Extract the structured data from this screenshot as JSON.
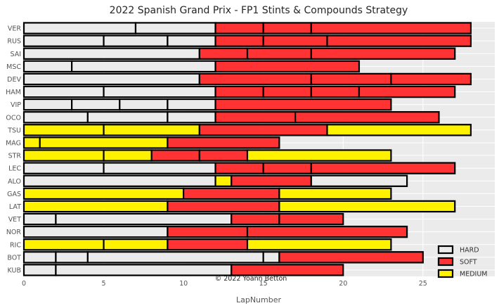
{
  "chart_data": {
    "type": "bar",
    "orientation": "horizontal-stacked",
    "title": "2022 Spanish Grand Prix - FP1 Stints & Compounds Strategy",
    "xlabel": "LapNumber",
    "ylabel": "",
    "xlim": [
      0,
      29.5
    ],
    "xticks": [
      0,
      5,
      10,
      15,
      20,
      25
    ],
    "grid": true,
    "legend_position": "bottom-right",
    "annotation": "© 2022 Yoann Betton",
    "compounds": [
      {
        "name": "HARD",
        "color": "#EBEBEB"
      },
      {
        "name": "SOFT",
        "color": "#FF3333"
      },
      {
        "name": "MEDIUM",
        "color": "#FFF200"
      }
    ],
    "drivers": [
      {
        "name": "VER",
        "stints": [
          {
            "start": 0,
            "end": 7,
            "compound": "HARD"
          },
          {
            "start": 7,
            "end": 12,
            "compound": "HARD"
          },
          {
            "start": 12,
            "end": 15,
            "compound": "SOFT"
          },
          {
            "start": 15,
            "end": 18,
            "compound": "SOFT"
          },
          {
            "start": 18,
            "end": 28,
            "compound": "SOFT"
          }
        ]
      },
      {
        "name": "RUS",
        "stints": [
          {
            "start": 0,
            "end": 5,
            "compound": "HARD"
          },
          {
            "start": 5,
            "end": 9,
            "compound": "HARD"
          },
          {
            "start": 9,
            "end": 12,
            "compound": "HARD"
          },
          {
            "start": 12,
            "end": 15,
            "compound": "SOFT"
          },
          {
            "start": 15,
            "end": 19,
            "compound": "SOFT"
          },
          {
            "start": 19,
            "end": 28,
            "compound": "SOFT"
          }
        ]
      },
      {
        "name": "SAI",
        "stints": [
          {
            "start": 0,
            "end": 11,
            "compound": "HARD"
          },
          {
            "start": 11,
            "end": 14,
            "compound": "SOFT"
          },
          {
            "start": 14,
            "end": 18,
            "compound": "SOFT"
          },
          {
            "start": 18,
            "end": 27,
            "compound": "SOFT"
          }
        ]
      },
      {
        "name": "MSC",
        "stints": [
          {
            "start": 0,
            "end": 3,
            "compound": "HARD"
          },
          {
            "start": 3,
            "end": 12,
            "compound": "HARD"
          },
          {
            "start": 12,
            "end": 21,
            "compound": "SOFT"
          }
        ]
      },
      {
        "name": "DEV",
        "stints": [
          {
            "start": 0,
            "end": 11,
            "compound": "HARD"
          },
          {
            "start": 11,
            "end": 18,
            "compound": "SOFT"
          },
          {
            "start": 18,
            "end": 23,
            "compound": "SOFT"
          },
          {
            "start": 23,
            "end": 28,
            "compound": "SOFT"
          }
        ]
      },
      {
        "name": "HAM",
        "stints": [
          {
            "start": 0,
            "end": 5,
            "compound": "HARD"
          },
          {
            "start": 5,
            "end": 12,
            "compound": "HARD"
          },
          {
            "start": 12,
            "end": 15,
            "compound": "SOFT"
          },
          {
            "start": 15,
            "end": 18,
            "compound": "SOFT"
          },
          {
            "start": 18,
            "end": 21,
            "compound": "SOFT"
          },
          {
            "start": 21,
            "end": 27,
            "compound": "SOFT"
          }
        ]
      },
      {
        "name": "VIP",
        "stints": [
          {
            "start": 0,
            "end": 3,
            "compound": "HARD"
          },
          {
            "start": 3,
            "end": 6,
            "compound": "HARD"
          },
          {
            "start": 6,
            "end": 9,
            "compound": "HARD"
          },
          {
            "start": 9,
            "end": 12,
            "compound": "HARD"
          },
          {
            "start": 12,
            "end": 23,
            "compound": "SOFT"
          }
        ]
      },
      {
        "name": "OCO",
        "stints": [
          {
            "start": 0,
            "end": 4,
            "compound": "HARD"
          },
          {
            "start": 4,
            "end": 9,
            "compound": "HARD"
          },
          {
            "start": 9,
            "end": 12,
            "compound": "HARD"
          },
          {
            "start": 12,
            "end": 17,
            "compound": "SOFT"
          },
          {
            "start": 17,
            "end": 26,
            "compound": "SOFT"
          }
        ]
      },
      {
        "name": "TSU",
        "stints": [
          {
            "start": 0,
            "end": 5,
            "compound": "MEDIUM"
          },
          {
            "start": 5,
            "end": 11,
            "compound": "MEDIUM"
          },
          {
            "start": 11,
            "end": 19,
            "compound": "SOFT"
          },
          {
            "start": 19,
            "end": 28,
            "compound": "MEDIUM"
          }
        ]
      },
      {
        "name": "MAG",
        "stints": [
          {
            "start": 0,
            "end": 1,
            "compound": "MEDIUM"
          },
          {
            "start": 1,
            "end": 9,
            "compound": "MEDIUM"
          },
          {
            "start": 9,
            "end": 16,
            "compound": "SOFT"
          }
        ]
      },
      {
        "name": "STR",
        "stints": [
          {
            "start": 0,
            "end": 5,
            "compound": "MEDIUM"
          },
          {
            "start": 5,
            "end": 8,
            "compound": "MEDIUM"
          },
          {
            "start": 8,
            "end": 11,
            "compound": "SOFT"
          },
          {
            "start": 11,
            "end": 14,
            "compound": "SOFT"
          },
          {
            "start": 14,
            "end": 23,
            "compound": "MEDIUM"
          }
        ]
      },
      {
        "name": "LEC",
        "stints": [
          {
            "start": 0,
            "end": 5,
            "compound": "HARD"
          },
          {
            "start": 5,
            "end": 12,
            "compound": "HARD"
          },
          {
            "start": 12,
            "end": 15,
            "compound": "SOFT"
          },
          {
            "start": 15,
            "end": 18,
            "compound": "SOFT"
          },
          {
            "start": 18,
            "end": 27,
            "compound": "SOFT"
          }
        ]
      },
      {
        "name": "ALO",
        "stints": [
          {
            "start": 0,
            "end": 12,
            "compound": "HARD"
          },
          {
            "start": 12,
            "end": 13,
            "compound": "MEDIUM"
          },
          {
            "start": 13,
            "end": 18,
            "compound": "SOFT"
          },
          {
            "start": 18,
            "end": 24,
            "compound": "HARD"
          }
        ]
      },
      {
        "name": "GAS",
        "stints": [
          {
            "start": 0,
            "end": 10,
            "compound": "MEDIUM"
          },
          {
            "start": 10,
            "end": 16,
            "compound": "SOFT"
          },
          {
            "start": 16,
            "end": 23,
            "compound": "MEDIUM"
          }
        ]
      },
      {
        "name": "LAT",
        "stints": [
          {
            "start": 0,
            "end": 9,
            "compound": "MEDIUM"
          },
          {
            "start": 9,
            "end": 16,
            "compound": "SOFT"
          },
          {
            "start": 16,
            "end": 27,
            "compound": "MEDIUM"
          }
        ]
      },
      {
        "name": "VET",
        "stints": [
          {
            "start": 0,
            "end": 2,
            "compound": "HARD"
          },
          {
            "start": 2,
            "end": 13,
            "compound": "HARD"
          },
          {
            "start": 13,
            "end": 16,
            "compound": "SOFT"
          },
          {
            "start": 16,
            "end": 20,
            "compound": "SOFT"
          }
        ]
      },
      {
        "name": "NOR",
        "stints": [
          {
            "start": 0,
            "end": 9,
            "compound": "HARD"
          },
          {
            "start": 9,
            "end": 14,
            "compound": "SOFT"
          },
          {
            "start": 14,
            "end": 24,
            "compound": "SOFT"
          }
        ]
      },
      {
        "name": "RIC",
        "stints": [
          {
            "start": 0,
            "end": 5,
            "compound": "MEDIUM"
          },
          {
            "start": 5,
            "end": 9,
            "compound": "MEDIUM"
          },
          {
            "start": 9,
            "end": 14,
            "compound": "SOFT"
          },
          {
            "start": 14,
            "end": 23,
            "compound": "MEDIUM"
          }
        ]
      },
      {
        "name": "BOT",
        "stints": [
          {
            "start": 0,
            "end": 2,
            "compound": "HARD"
          },
          {
            "start": 2,
            "end": 4,
            "compound": "HARD"
          },
          {
            "start": 4,
            "end": 15,
            "compound": "HARD"
          },
          {
            "start": 15,
            "end": 16,
            "compound": "HARD"
          },
          {
            "start": 16,
            "end": 25,
            "compound": "SOFT"
          }
        ]
      },
      {
        "name": "KUB",
        "stints": [
          {
            "start": 0,
            "end": 2,
            "compound": "HARD"
          },
          {
            "start": 2,
            "end": 13,
            "compound": "HARD"
          },
          {
            "start": 13,
            "end": 20,
            "compound": "SOFT"
          }
        ]
      }
    ]
  }
}
